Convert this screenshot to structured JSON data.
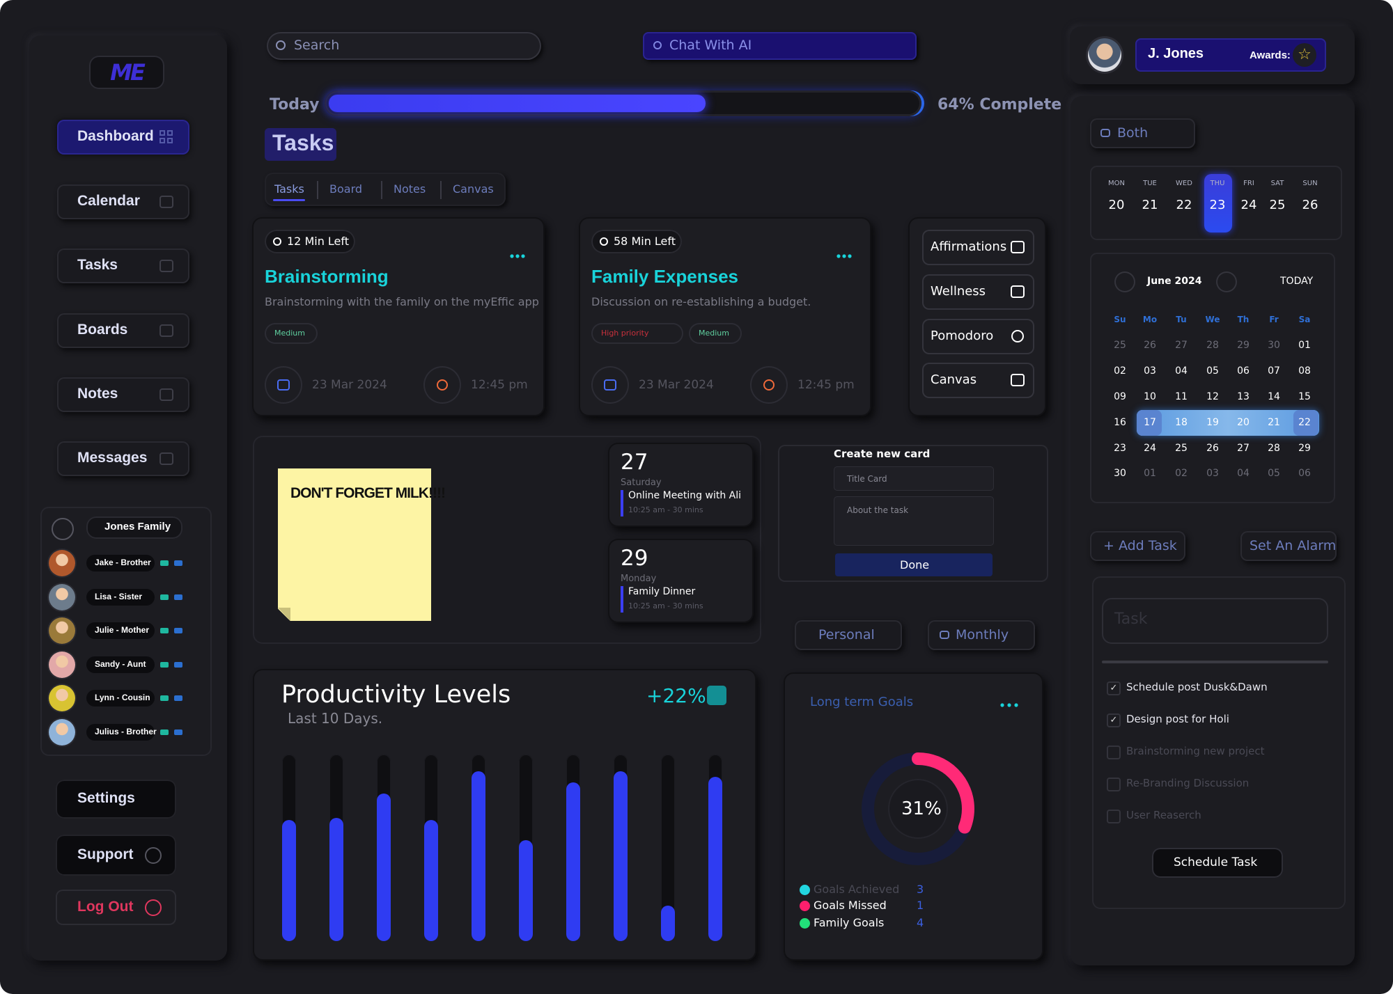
{
  "logo": "ME",
  "sidebar": {
    "nav": [
      "Dashboard",
      "Calendar",
      "Tasks",
      "Boards",
      "Notes",
      "Messages"
    ],
    "family": {
      "title": "Jones Family",
      "members": [
        "Jake - Brother",
        "Lisa - Sister",
        "Julie - Mother",
        "Sandy - Aunt",
        "Lynn - Cousin",
        "Julius - Brother"
      ]
    },
    "bottom": [
      "Settings",
      "Support",
      "Log Out"
    ]
  },
  "header": {
    "search": "Search",
    "chat": "Chat With AI"
  },
  "progress": {
    "label": "Today",
    "value": 64,
    "value_label": "64% Complete"
  },
  "page_title": "Tasks",
  "tabs": [
    "Tasks",
    "Board",
    "Notes",
    "Canvas"
  ],
  "task_cards": [
    {
      "time_left": "12 Min Left",
      "title": "Brainstorming",
      "description": "Brainstorming with the family on the myEffic app",
      "tags": [
        {
          "text": "Medium",
          "color": "#5fcf9f"
        }
      ],
      "date": "23 Mar 2024",
      "time": "12:45 pm"
    },
    {
      "time_left": "58 Min Left",
      "title": "Family Expenses",
      "description": "Discussion on re-establishing a budget.",
      "tags": [
        {
          "text": "High priority",
          "color": "#c8303c"
        },
        {
          "text": "Medium",
          "color": "#5fcf9f"
        }
      ],
      "date": "23 Mar 2024",
      "time": "12:45 pm"
    }
  ],
  "quick_actions": [
    "Affirmations",
    "Wellness",
    "Pomodoro",
    "Canvas"
  ],
  "sticky_note": "DON'T FORGET MILK!!!!",
  "events": [
    {
      "day": "27",
      "weekday": "Saturday",
      "title": "Online Meeting with Ali",
      "time": "10:25 am - 30 mins"
    },
    {
      "day": "29",
      "weekday": "Monday",
      "title": "Family Dinner",
      "time": "10:25 am - 30 mins"
    }
  ],
  "create_card": {
    "title": "Create new card",
    "title_placeholder": "Title Card",
    "about_placeholder": "About the task",
    "button": "Done"
  },
  "filters": [
    "Personal",
    "Monthly"
  ],
  "chart_data": {
    "type": "bar",
    "title": "Productivity Levels",
    "subtitle": "Last 10 Days.",
    "change": "+22%",
    "values": [
      65,
      66,
      79,
      65,
      91,
      54,
      85,
      91,
      19,
      88
    ],
    "ylim": [
      0,
      100
    ],
    "color": "#2f3cf2"
  },
  "goals": {
    "title": "Long term Goals",
    "percent": 31,
    "percent_label": "31%",
    "items": [
      {
        "name": "Goals Achieved",
        "value": 3,
        "color": "#22d6e0"
      },
      {
        "name": "Goals Missed",
        "value": 1,
        "color": "#ff1f6d"
      },
      {
        "name": "Family Goals",
        "value": 4,
        "color": "#22e07a"
      }
    ]
  },
  "profile": {
    "name": "J. Jones",
    "awards": "Awards:"
  },
  "calendar": {
    "filter": "Both",
    "week": [
      {
        "dow": "MON",
        "day": "20"
      },
      {
        "dow": "TUE",
        "day": "21"
      },
      {
        "dow": "WED",
        "day": "22"
      },
      {
        "dow": "THU",
        "day": "23"
      },
      {
        "dow": "FRI",
        "day": "24"
      },
      {
        "dow": "SAT",
        "day": "25"
      },
      {
        "dow": "SUN",
        "day": "26"
      }
    ],
    "month": "June 2024",
    "today": "TODAY",
    "weekdays": [
      "Su",
      "Mo",
      "Tu",
      "We",
      "Th",
      "Fr",
      "Sa"
    ],
    "days": [
      "25",
      "26",
      "27",
      "28",
      "29",
      "30",
      "01",
      "02",
      "03",
      "04",
      "05",
      "06",
      "07",
      "08",
      "09",
      "10",
      "11",
      "12",
      "13",
      "14",
      "15",
      "16",
      "17",
      "18",
      "19",
      "20",
      "21",
      "22",
      "23",
      "24",
      "25",
      "26",
      "27",
      "28",
      "29",
      "30",
      "01",
      "02",
      "03",
      "04",
      "05",
      "06"
    ]
  },
  "task_panel": {
    "add_task": "+ Add Task",
    "alarm": "Set An Alarm",
    "placeholder": "Task",
    "items": [
      {
        "text": "Schedule post Dusk&Dawn",
        "done": true
      },
      {
        "text": "Design post for Holi",
        "done": true
      },
      {
        "text": "Brainstorming new project",
        "done": false
      },
      {
        "text": "Re-Branding Discussion",
        "done": false
      },
      {
        "text": "User Reaserch",
        "done": false
      }
    ],
    "button": "Schedule Task"
  }
}
